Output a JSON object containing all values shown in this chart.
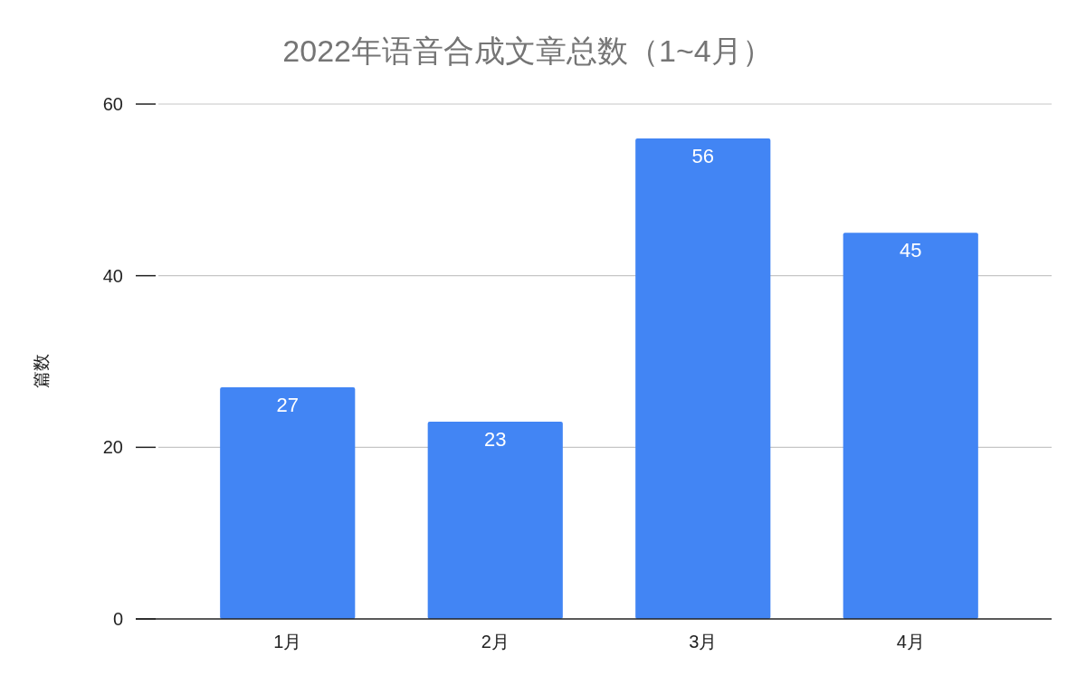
{
  "chart_data": {
    "type": "bar",
    "title": "2022年语音合成文章总数（1~4月）",
    "ylabel": "篇数",
    "categories": [
      "1月",
      "2月",
      "3月",
      "4月"
    ],
    "values": [
      27,
      23,
      56,
      45
    ],
    "color": "#4285f4",
    "ylim": [
      0,
      60
    ],
    "yticks": [
      0,
      20,
      40,
      60
    ],
    "grid": "y",
    "data_labels": true
  }
}
